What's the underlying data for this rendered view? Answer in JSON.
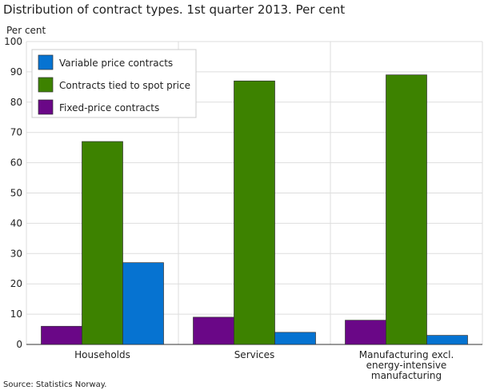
{
  "chart_data": {
    "type": "bar",
    "title": "Distribution of contract types. 1st quarter 2013. Per cent",
    "ylabel": "Per cent",
    "xlabel": "",
    "ylim": [
      0,
      100
    ],
    "yticks": [
      0,
      10,
      20,
      30,
      40,
      50,
      60,
      70,
      80,
      90,
      100
    ],
    "grid": true,
    "legend_position": "top-left",
    "categories": [
      [
        "Households"
      ],
      [
        "Services"
      ],
      [
        "Manufacturing excl.",
        "energy-intensive",
        "manufacturing"
      ]
    ],
    "series": [
      {
        "name": "Fixed-price contracts",
        "color": "#6a0787",
        "values": [
          6,
          9,
          8
        ]
      },
      {
        "name": "Contracts tied to spot price",
        "color": "#3d8200",
        "values": [
          67,
          87,
          89
        ]
      },
      {
        "name": "Variable price contracts",
        "color": "#0673d1",
        "values": [
          27,
          4,
          3
        ]
      }
    ],
    "legend_order": [
      2,
      1,
      0
    ],
    "source": "Source: Statistics Norway."
  }
}
